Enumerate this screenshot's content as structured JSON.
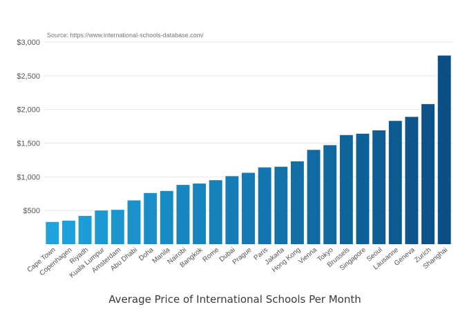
{
  "chart_data": {
    "type": "bar",
    "title": "Average Price of International Schools Per Month",
    "source": "Source: https://www.international-schools-database.com/",
    "xlabel": "",
    "ylabel": "",
    "ylim": [
      0,
      3000
    ],
    "yticks": [
      500,
      1000,
      1500,
      2000,
      2500,
      3000
    ],
    "ytick_labels": [
      "$500",
      "$1,000",
      "$1,500",
      "$2,000",
      "$2,500",
      "$3,000"
    ],
    "grid": true,
    "categories": [
      "Cape Town",
      "Copenhagen",
      "Riyadh",
      "Kuala Lumpur",
      "Amsterdam",
      "Abu Dhabi",
      "Doha",
      "Manila",
      "Nairobi",
      "Bangkok",
      "Rome",
      "Dubai",
      "Prague",
      "Paris",
      "Jakarta",
      "Hong Kong",
      "Vienna",
      "Tokyo",
      "Brussels",
      "Singapore",
      "Seoul",
      "Lausanne",
      "Geneva",
      "Zurich",
      "Shanghai"
    ],
    "values": [
      330,
      350,
      420,
      500,
      510,
      650,
      760,
      790,
      880,
      900,
      950,
      1010,
      1060,
      1140,
      1150,
      1230,
      1400,
      1470,
      1620,
      1640,
      1690,
      1830,
      1890,
      2080,
      2800
    ],
    "colors": {
      "start": "#1fa3de",
      "end": "#0a4f85"
    }
  }
}
